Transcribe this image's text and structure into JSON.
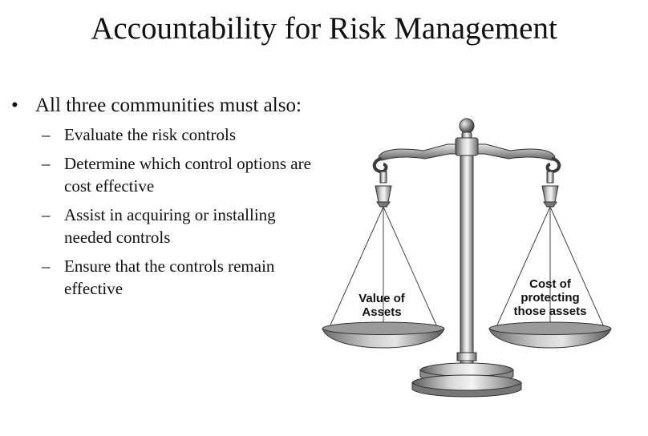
{
  "slide": {
    "title": "Accountability for Risk Management",
    "bullet_symbol": "•",
    "dash_symbol": "–",
    "main_bullet": "All three communities must also:",
    "sub_bullets": [
      "Evaluate the risk controls",
      "Determine which control options are cost effective",
      "Assist in acquiring or installing needed controls",
      "Ensure that the controls remain effective"
    ]
  },
  "scale": {
    "left_pan_label": "Value of Assets",
    "right_pan_label": "Cost of protecting those assets"
  }
}
